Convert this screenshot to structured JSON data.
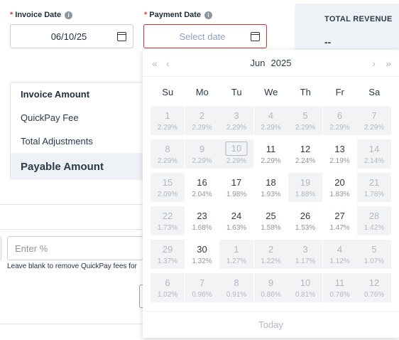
{
  "invoice_date": {
    "label": "Invoice Date",
    "value": "06/10/25"
  },
  "payment_date": {
    "label": "Payment Date",
    "placeholder": "Select date"
  },
  "summary": {
    "invoice_amount": "Invoice Amount",
    "quickpay_fee": "QuickPay Fee",
    "total_adjustments": "Total Adjustments",
    "payable_amount": "Payable Amount"
  },
  "percent_input": {
    "placeholder": "Enter %"
  },
  "note": "Leave blank to remove QuickPay fees for",
  "revenue": {
    "title": "TOTAL REVENUE",
    "value": "--"
  },
  "calendar": {
    "month": "Jun",
    "year": "2025",
    "nav": {
      "prev_year": "«",
      "prev_month": "‹",
      "next_month": "›",
      "next_year": "»"
    },
    "weekdays": [
      "Su",
      "Mo",
      "Tu",
      "We",
      "Th",
      "Fr",
      "Sa"
    ],
    "days": [
      {
        "d": "1",
        "r": "2.29%",
        "dis": true
      },
      {
        "d": "2",
        "r": "2.29%",
        "dis": true
      },
      {
        "d": "3",
        "r": "2.29%",
        "dis": true
      },
      {
        "d": "4",
        "r": "2.29%",
        "dis": true
      },
      {
        "d": "5",
        "r": "2.29%",
        "dis": true
      },
      {
        "d": "6",
        "r": "2.29%",
        "dis": true
      },
      {
        "d": "7",
        "r": "2.29%",
        "dis": true
      },
      {
        "d": "8",
        "r": "2.29%",
        "dis": true
      },
      {
        "d": "9",
        "r": "2.29%",
        "dis": true
      },
      {
        "d": "10",
        "r": "2.29%",
        "dis": true,
        "today": true
      },
      {
        "d": "11",
        "r": "2.29%",
        "dis": false
      },
      {
        "d": "12",
        "r": "2.24%",
        "dis": false
      },
      {
        "d": "13",
        "r": "2.19%",
        "dis": false
      },
      {
        "d": "14",
        "r": "2.14%",
        "dis": true
      },
      {
        "d": "15",
        "r": "2.09%",
        "dis": true
      },
      {
        "d": "16",
        "r": "2.04%",
        "dis": false
      },
      {
        "d": "17",
        "r": "1.98%",
        "dis": false
      },
      {
        "d": "18",
        "r": "1.93%",
        "dis": false
      },
      {
        "d": "19",
        "r": "1.88%",
        "dis": true
      },
      {
        "d": "20",
        "r": "1.83%",
        "dis": false
      },
      {
        "d": "21",
        "r": "1.78%",
        "dis": true
      },
      {
        "d": "22",
        "r": "1.73%",
        "dis": true
      },
      {
        "d": "23",
        "r": "1.68%",
        "dis": false
      },
      {
        "d": "24",
        "r": "1.63%",
        "dis": false
      },
      {
        "d": "25",
        "r": "1.58%",
        "dis": false
      },
      {
        "d": "26",
        "r": "1.53%",
        "dis": false
      },
      {
        "d": "27",
        "r": "1.47%",
        "dis": false
      },
      {
        "d": "28",
        "r": "1.42%",
        "dis": true
      },
      {
        "d": "29",
        "r": "1.37%",
        "dis": true
      },
      {
        "d": "30",
        "r": "1.32%",
        "dis": false
      },
      {
        "d": "1",
        "r": "1.27%",
        "dis": true
      },
      {
        "d": "2",
        "r": "1.22%",
        "dis": true
      },
      {
        "d": "3",
        "r": "1.17%",
        "dis": true
      },
      {
        "d": "4",
        "r": "1.12%",
        "dis": true
      },
      {
        "d": "5",
        "r": "1.07%",
        "dis": true
      },
      {
        "d": "6",
        "r": "1.02%",
        "dis": true
      },
      {
        "d": "7",
        "r": "0.96%",
        "dis": true
      },
      {
        "d": "8",
        "r": "0.91%",
        "dis": true
      },
      {
        "d": "9",
        "r": "0.86%",
        "dis": true
      },
      {
        "d": "10",
        "r": "0.81%",
        "dis": true
      },
      {
        "d": "11",
        "r": "0.76%",
        "dis": true
      },
      {
        "d": "12",
        "r": "0.76%",
        "dis": true
      }
    ],
    "footer": "Today"
  }
}
